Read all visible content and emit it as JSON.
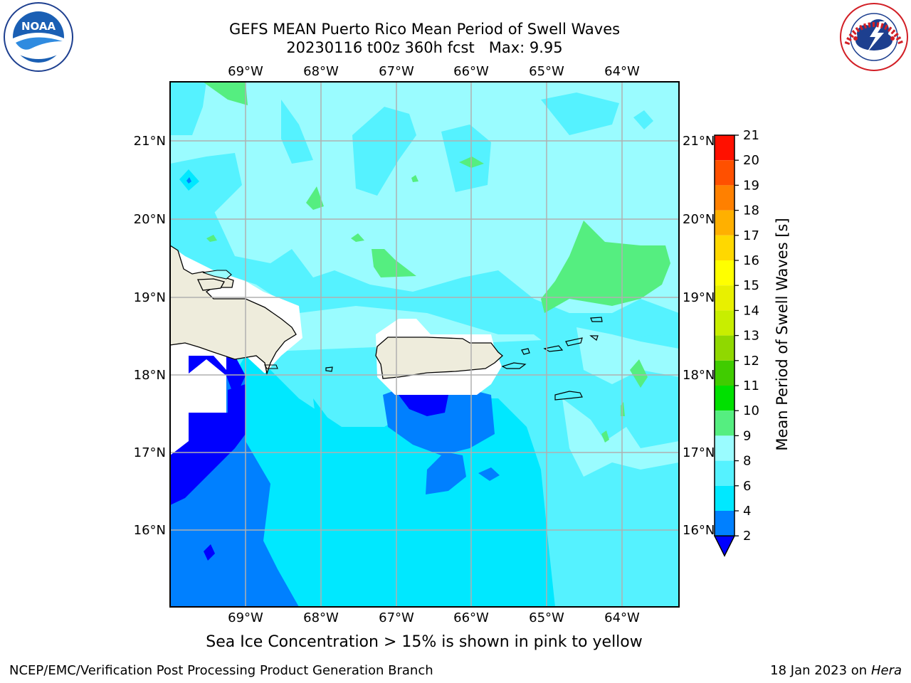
{
  "title_line1": "GEFS MEAN Puerto Rico Mean Period of Swell Waves",
  "title_line2": "20230116 t00z 360h fcst   Max: 9.95",
  "caption": "Sea Ice Concentration > 15% is shown in pink to yellow",
  "footer_left": "NCEP/EMC/Verification Post Processing Product Generation Branch",
  "footer_date": "18 Jan 2023 on ",
  "footer_host": "Hera",
  "logos": {
    "left": "noaa-logo",
    "right": "nws-logo"
  },
  "map": {
    "lon_labels": [
      "69°W",
      "68°W",
      "67°W",
      "66°W",
      "65°W",
      "64°W"
    ],
    "lat_labels": [
      "21°N",
      "20°N",
      "19°N",
      "18°N",
      "17°N",
      "16°N"
    ],
    "land_color": "#eeecdc",
    "graticule_color": "#b0b0b0"
  },
  "colorbar": {
    "label": "Mean Period of Swell Waves [s]",
    "ticks": [
      "2",
      "4",
      "6",
      "8",
      "9",
      "10",
      "11",
      "12",
      "13",
      "14",
      "15",
      "16",
      "17",
      "18",
      "19",
      "20",
      "21"
    ],
    "colors": [
      "#0000ff",
      "#0080ff",
      "#00e8ff",
      "#55f2ff",
      "#9afcff",
      "#55ee80",
      "#00e000",
      "#40cc00",
      "#90d800",
      "#c8ee00",
      "#e8f000",
      "#ffff00",
      "#ffd800",
      "#ffb000",
      "#ff8000",
      "#ff5000",
      "#ff1000"
    ]
  }
}
